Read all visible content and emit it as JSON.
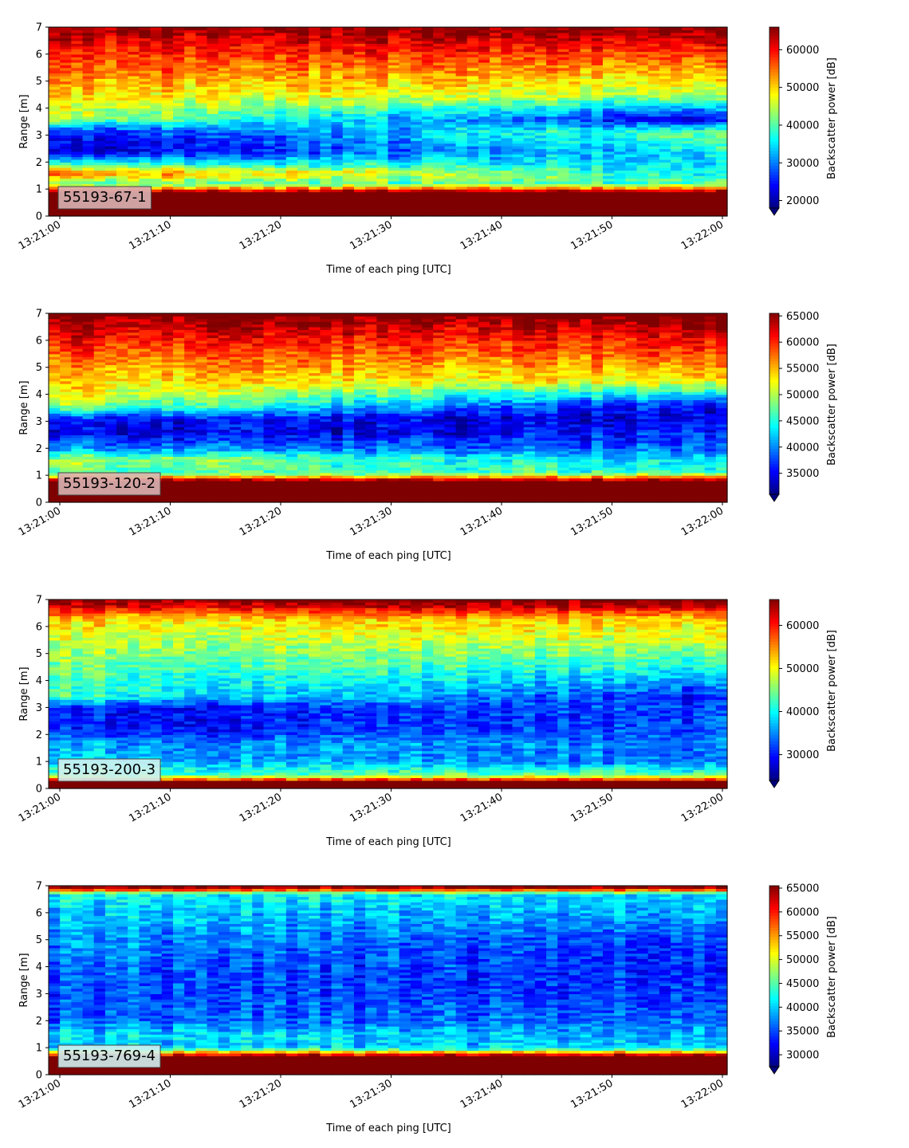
{
  "figure": {
    "colormap": "jet",
    "colors": {
      "jet": [
        "#00007f",
        "#0000ff",
        "#007fff",
        "#00ffff",
        "#7fff7f",
        "#ffff00",
        "#ff7f00",
        "#ff0000",
        "#7f0000"
      ]
    }
  },
  "chart_data": [
    {
      "type": "heatmap",
      "label": "55193-67-1",
      "label_box_color": "#d9b3b3",
      "xlabel": "Time of each ping [UTC]",
      "ylabel": "Range [m]",
      "colorbar_label": "Backscatter power [dB]",
      "xlim": [
        "13:21:00",
        "13:22:00"
      ],
      "xticks": [
        "13:21:00",
        "13:21:10",
        "13:21:20",
        "13:21:30",
        "13:21:40",
        "13:21:50",
        "13:22:00"
      ],
      "ylim": [
        0,
        7
      ],
      "yticks": [
        "0",
        "1",
        "2",
        "3",
        "4",
        "5",
        "6",
        "7"
      ],
      "clim": [
        18000,
        66000
      ],
      "colorbar_ticks": [
        "20000",
        "30000",
        "40000",
        "50000",
        "60000"
      ],
      "colorbar_tick_values": [
        20000,
        30000,
        40000,
        50000,
        60000
      ],
      "colorbar_extend": "min",
      "profile_range_m": [
        0,
        0.4,
        0.9,
        1.2,
        1.6,
        1.9,
        2.4,
        3.1,
        3.6,
        4.5,
        5.5,
        6.3,
        6.8,
        7.0
      ],
      "profile_start": [
        66000,
        66000,
        66000,
        40000,
        56000,
        40000,
        22000,
        24000,
        44000,
        50000,
        56000,
        60000,
        64000,
        66000
      ],
      "profile_end": [
        66000,
        66000,
        66000,
        40000,
        36000,
        34000,
        36000,
        42000,
        22000,
        44000,
        52000,
        60000,
        64000,
        66000
      ]
    },
    {
      "type": "heatmap",
      "label": "55193-120-2",
      "label_box_color": "#d9b3b3",
      "xlabel": "Time of each ping [UTC]",
      "ylabel": "Range [m]",
      "colorbar_label": "Backscatter power [dB]",
      "xlim": [
        "13:21:00",
        "13:22:00"
      ],
      "xticks": [
        "13:21:00",
        "13:21:10",
        "13:21:20",
        "13:21:30",
        "13:21:40",
        "13:21:50",
        "13:22:00"
      ],
      "ylim": [
        0,
        7
      ],
      "yticks": [
        "0",
        "1",
        "2",
        "3",
        "4",
        "5",
        "6",
        "7"
      ],
      "clim": [
        31000,
        65500
      ],
      "colorbar_ticks": [
        "35000",
        "40000",
        "45000",
        "50000",
        "55000",
        "60000",
        "65000"
      ],
      "colorbar_tick_values": [
        35000,
        40000,
        45000,
        50000,
        55000,
        60000,
        65000
      ],
      "colorbar_extend": "min",
      "profile_range_m": [
        0,
        0.3,
        0.8,
        1.1,
        1.6,
        2.0,
        2.6,
        3.1,
        3.6,
        4.5,
        5.5,
        6.3,
        6.8,
        7.0
      ],
      "profile_start": [
        65500,
        65500,
        65500,
        46000,
        50000,
        40000,
        34000,
        36000,
        50000,
        54000,
        58000,
        62000,
        65000,
        65500
      ],
      "profile_end": [
        65500,
        65500,
        65500,
        46000,
        42000,
        38000,
        36000,
        34000,
        34000,
        52000,
        58000,
        62000,
        65000,
        65500
      ]
    },
    {
      "type": "heatmap",
      "label": "55193-200-3",
      "label_box_color": "#d0f0f0",
      "xlabel": "Time of each ping [UTC]",
      "ylabel": "Range [m]",
      "colorbar_label": "Backscatter power [dB]",
      "xlim": [
        "13:21:00",
        "13:22:00"
      ],
      "xticks": [
        "13:21:00",
        "13:21:10",
        "13:21:20",
        "13:21:30",
        "13:21:40",
        "13:21:50",
        "13:22:00"
      ],
      "ylim": [
        0,
        7
      ],
      "yticks": [
        "0",
        "1",
        "2",
        "3",
        "4",
        "5",
        "6",
        "7"
      ],
      "clim": [
        24000,
        66000
      ],
      "colorbar_ticks": [
        "30000",
        "40000",
        "50000",
        "60000"
      ],
      "colorbar_tick_values": [
        30000,
        40000,
        50000,
        60000
      ],
      "colorbar_extend": "min",
      "profile_range_m": [
        0,
        0.25,
        0.5,
        1.0,
        1.7,
        2.2,
        3.0,
        3.4,
        4.5,
        5.5,
        6.3,
        6.8,
        7.0
      ],
      "profile_start": [
        66000,
        66000,
        44000,
        38000,
        36000,
        30000,
        30000,
        42000,
        44000,
        48000,
        52000,
        64000,
        66000
      ],
      "profile_end": [
        66000,
        66000,
        44000,
        34000,
        34000,
        32000,
        32000,
        30000,
        40000,
        48000,
        52000,
        64000,
        66000
      ]
    },
    {
      "type": "heatmap",
      "label": "55193-769-4",
      "label_box_color": "#d0f0f0",
      "xlabel": "Time of each ping [UTC]",
      "ylabel": "Range [m]",
      "colorbar_label": "Backscatter power [dB]",
      "xlim": [
        "13:21:00",
        "13:22:00"
      ],
      "xticks": [
        "13:21:00",
        "13:21:10",
        "13:21:20",
        "13:21:30",
        "13:21:40",
        "13:21:50",
        "13:22:00"
      ],
      "ylim": [
        0,
        7
      ],
      "yticks": [
        "0",
        "1",
        "2",
        "3",
        "4",
        "5",
        "6",
        "7"
      ],
      "clim": [
        27500,
        65500
      ],
      "colorbar_ticks": [
        "30000",
        "35000",
        "40000",
        "45000",
        "50000",
        "55000",
        "60000",
        "65000"
      ],
      "colorbar_tick_values": [
        30000,
        35000,
        40000,
        45000,
        50000,
        55000,
        60000,
        65000
      ],
      "colorbar_extend": "min",
      "profile_range_m": [
        0,
        0.3,
        0.7,
        1.0,
        1.5,
        2.0,
        3.0,
        4.0,
        5.0,
        6.0,
        6.7,
        6.9,
        7.0
      ],
      "profile_start": [
        65500,
        65500,
        65500,
        40000,
        41000,
        36000,
        35000,
        36000,
        38000,
        40000,
        42000,
        62000,
        65500
      ],
      "profile_end": [
        65500,
        65500,
        65500,
        40000,
        38000,
        36000,
        34000,
        33000,
        34000,
        38000,
        40000,
        62000,
        65500
      ]
    }
  ]
}
